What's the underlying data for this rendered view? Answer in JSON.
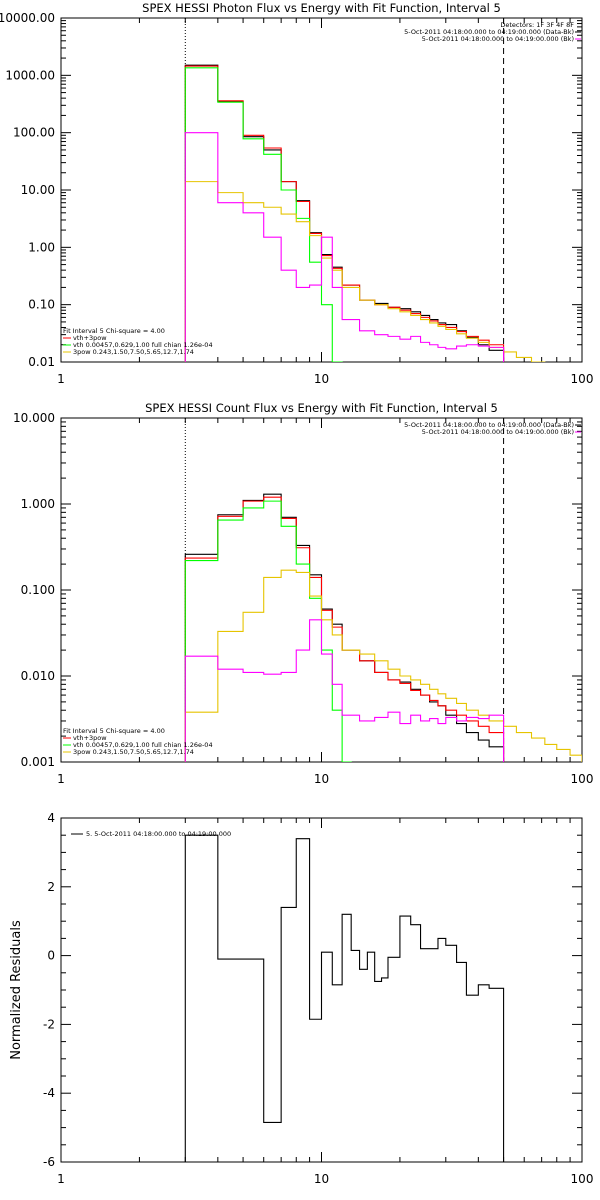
{
  "chart_data": [
    {
      "type": "line",
      "title": "SPEX HESSI Photon Flux vs Energy with Fit Function, Interval 5",
      "x_scale": "log",
      "y_scale": "log",
      "xlim": [
        1,
        100
      ],
      "ylim": [
        0.01,
        10000
      ],
      "x_ticks": [
        1,
        10,
        100
      ],
      "x_tick_labels": [
        "1",
        "10",
        "100"
      ],
      "y_ticks": [
        0.01,
        0.1,
        1,
        10,
        100,
        1000,
        10000
      ],
      "y_tick_labels": [
        "0.01",
        "0.10",
        "1.00",
        "10.00",
        "100.00",
        "1000.00",
        "10000.00"
      ],
      "vlines": [
        {
          "x": 3,
          "style": "dotted"
        },
        {
          "x": 50,
          "style": "dashed"
        }
      ],
      "legend_top_right": [
        "Detectors: 1F 3F 4F 8F",
        "5-Oct-2011 04:18:00.000 to 04:19:00.000 (Data-Bk)",
        "5-Oct-2011 04:18:00.000 to 04:19:00.000 (Bk)"
      ],
      "legend_bottom_left": [
        "Fit Interval 5   Chi-square = 4.00",
        "vth+3pow",
        "vth 0.00457,0.629,1.00  full chian 1.26e-04",
        "3pow 0.243,1.50,7.50,5.65,12.7,1.74"
      ],
      "legend_line_colors": [
        "#ff0000",
        "#00ff00",
        "#e6c400"
      ],
      "series": [
        {
          "name": "5-Oct-2011 04:18:00.000 to 04:19:00.000 (Data-Bk)",
          "color": "#000000",
          "edges": [
            3,
            4,
            5,
            6,
            7,
            8,
            9,
            10,
            11,
            12,
            14,
            16,
            18,
            20,
            22,
            24,
            26,
            28,
            30,
            33,
            36,
            40,
            44,
            50
          ],
          "values": [
            1500,
            350,
            85,
            50,
            14,
            6.5,
            1.8,
            0.75,
            0.45,
            0.22,
            0.12,
            0.105,
            0.09,
            0.085,
            0.075,
            0.065,
            0.055,
            0.048,
            0.045,
            0.035,
            0.027,
            0.02,
            0.016
          ]
        },
        {
          "name": "vth+3pow",
          "color": "#ff0000",
          "edges": [
            3,
            4,
            5,
            6,
            7,
            8,
            9,
            10,
            11,
            12,
            14,
            16,
            18,
            20,
            22,
            24,
            26,
            28,
            30,
            33,
            36,
            40,
            44,
            50
          ],
          "values": [
            1450,
            360,
            90,
            54,
            14,
            6.3,
            1.75,
            0.72,
            0.43,
            0.22,
            0.12,
            0.1,
            0.09,
            0.08,
            0.07,
            0.06,
            0.052,
            0.045,
            0.04,
            0.034,
            0.028,
            0.024,
            0.02
          ]
        },
        {
          "name": "vth 0.00457,0.629,1.00  full chian 1.26e-04",
          "color": "#00ff00",
          "edges": [
            3,
            4,
            5,
            6,
            7,
            8,
            9,
            10,
            11,
            12
          ],
          "values": [
            1350,
            340,
            78,
            42,
            10,
            3.2,
            0.55,
            0.1,
            0.01
          ]
        },
        {
          "name": "3pow 0.243,1.50,7.50,5.65,12.7,1.74",
          "color": "#e6c400",
          "edges": [
            3,
            4,
            5,
            6,
            7,
            8,
            9,
            10,
            11,
            12,
            14,
            16,
            18,
            20,
            22,
            24,
            26,
            28,
            30,
            33,
            36,
            40,
            44,
            50,
            56,
            64,
            72
          ],
          "values": [
            14,
            9,
            6,
            5,
            3.8,
            2.8,
            1.6,
            0.65,
            0.4,
            0.2,
            0.12,
            0.1,
            0.085,
            0.075,
            0.065,
            0.055,
            0.048,
            0.042,
            0.037,
            0.031,
            0.026,
            0.022,
            0.018,
            0.015,
            0.012,
            0.01
          ]
        },
        {
          "name": "5-Oct-2011 04:18:00.000 to 04:19:00.000 (Bk)",
          "color": "#ff00ff",
          "edges": [
            3,
            4,
            5,
            6,
            7,
            8,
            9,
            10,
            11,
            12,
            14,
            16,
            18,
            20,
            22,
            24,
            26,
            28,
            30,
            33,
            36,
            40,
            44,
            50
          ],
          "values": [
            100,
            6,
            4,
            1.5,
            0.4,
            0.2,
            0.22,
            1.5,
            0.2,
            0.055,
            0.035,
            0.03,
            0.028,
            0.025,
            0.028,
            0.022,
            0.02,
            0.018,
            0.017,
            0.019,
            0.02,
            0.019,
            0.018
          ]
        }
      ]
    },
    {
      "type": "line",
      "title": "SPEX HESSI Count Flux vs Energy with Fit Function, Interval 5",
      "x_scale": "log",
      "y_scale": "log",
      "xlim": [
        1,
        100
      ],
      "ylim": [
        0.001,
        10
      ],
      "x_ticks": [
        1,
        10,
        100
      ],
      "x_tick_labels": [
        "1",
        "10",
        "100"
      ],
      "y_ticks": [
        0.001,
        0.01,
        0.1,
        1,
        10
      ],
      "y_tick_labels": [
        "0.001",
        "0.010",
        "0.100",
        "1.000",
        "10.000"
      ],
      "vlines": [
        {
          "x": 3,
          "style": "dotted"
        },
        {
          "x": 50,
          "style": "dashed"
        }
      ],
      "legend_top_right": [
        "5-Oct-2011 04:18:00.000 to 04:19:00.000 (Data-Bk)",
        "5-Oct-2011 04:18:00.000 to 04:19:00.000 (Bk)"
      ],
      "legend_bottom_left": [
        "Fit Interval 5   Chi-square = 4.00",
        "vth+3pow",
        "vth 0.00457,0.629,1.00  full chian 1.26e-04",
        "3pow 0.243,1.50,7.50,5.65,12.7,1.74"
      ],
      "legend_line_colors": [
        "#ff0000",
        "#00ff00",
        "#e6c400"
      ],
      "series": [
        {
          "name": "5-Oct-2011 04:18:00.000 to 04:19:00.000 (Data-Bk)",
          "color": "#000000",
          "edges": [
            3,
            4,
            5,
            6,
            7,
            8,
            9,
            10,
            11,
            12,
            14,
            16,
            18,
            20,
            22,
            24,
            26,
            28,
            30,
            33,
            36,
            40,
            44,
            50
          ],
          "values": [
            0.26,
            0.75,
            1.1,
            1.3,
            0.7,
            0.33,
            0.15,
            0.06,
            0.04,
            0.02,
            0.015,
            0.011,
            0.009,
            0.0085,
            0.007,
            0.006,
            0.005,
            0.0045,
            0.0035,
            0.0028,
            0.0022,
            0.0018,
            0.0015
          ]
        },
        {
          "name": "vth+3pow",
          "color": "#ff0000",
          "edges": [
            3,
            4,
            5,
            6,
            7,
            8,
            9,
            10,
            11,
            12,
            14,
            16,
            18,
            20,
            22,
            24,
            26,
            28,
            30,
            33,
            36,
            40,
            44,
            50
          ],
          "values": [
            0.235,
            0.72,
            1.08,
            1.2,
            0.68,
            0.31,
            0.14,
            0.058,
            0.037,
            0.02,
            0.015,
            0.011,
            0.009,
            0.0082,
            0.0068,
            0.006,
            0.0052,
            0.0045,
            0.004,
            0.0035,
            0.003,
            0.0026,
            0.0022
          ]
        },
        {
          "name": "vth 0.00457,0.629,1.00  full chian 1.26e-04",
          "color": "#00ff00",
          "edges": [
            3,
            4,
            5,
            6,
            7,
            8,
            9,
            10,
            11,
            12,
            13
          ],
          "values": [
            0.22,
            0.65,
            0.9,
            1.08,
            0.55,
            0.2,
            0.08,
            0.02,
            0.004,
            0.001
          ]
        },
        {
          "name": "3pow 0.243,1.50,7.50,5.65,12.7,1.74",
          "color": "#e6c400",
          "edges": [
            3,
            4,
            5,
            6,
            7,
            8,
            9,
            10,
            11,
            12,
            14,
            16,
            18,
            20,
            22,
            24,
            26,
            28,
            30,
            33,
            36,
            40,
            44,
            50,
            56,
            64,
            72,
            80,
            90,
            100
          ],
          "values": [
            0.0038,
            0.033,
            0.055,
            0.14,
            0.17,
            0.16,
            0.085,
            0.045,
            0.03,
            0.02,
            0.018,
            0.015,
            0.012,
            0.01,
            0.009,
            0.008,
            0.007,
            0.0062,
            0.0055,
            0.0048,
            0.004,
            0.0035,
            0.003,
            0.0026,
            0.0022,
            0.0019,
            0.0016,
            0.0014,
            0.0012
          ]
        },
        {
          "name": "5-Oct-2011 04:18:00.000 to 04:19:00.000 (Bk)",
          "color": "#ff00ff",
          "edges": [
            3,
            4,
            5,
            6,
            7,
            8,
            9,
            10,
            11,
            12,
            14,
            16,
            18,
            20,
            22,
            24,
            26,
            28,
            30,
            33,
            36,
            40,
            44,
            50
          ],
          "values": [
            0.017,
            0.012,
            0.011,
            0.0105,
            0.011,
            0.02,
            0.045,
            0.018,
            0.008,
            0.0035,
            0.003,
            0.0033,
            0.0038,
            0.0028,
            0.0035,
            0.003,
            0.0032,
            0.0028,
            0.0033,
            0.003,
            0.0033,
            0.0032,
            0.0035
          ]
        }
      ]
    },
    {
      "type": "line",
      "title": "",
      "x_scale": "log",
      "y_scale": "linear",
      "xlim": [
        1,
        100
      ],
      "ylim": [
        -6,
        4
      ],
      "ylabel": "Normalized Residuals",
      "x_ticks": [
        1,
        10,
        100
      ],
      "x_tick_labels": [
        "1",
        "10",
        "100"
      ],
      "y_ticks": [
        -6,
        -4,
        -2,
        0,
        2,
        4
      ],
      "y_tick_labels": [
        "-6",
        "-4",
        "-2",
        "0",
        "2",
        "4"
      ],
      "legend_top_left": [
        "5.  5-Oct-2011 04:18:00.000 to 04:19:00.000"
      ],
      "series": [
        {
          "name": "5.  5-Oct-2011 04:18:00.000 to 04:19:00.000",
          "color": "#000000",
          "edges": [
            3,
            4,
            5,
            6,
            7,
            8,
            9,
            10,
            11,
            12,
            13,
            14,
            15,
            16,
            17,
            18,
            20,
            22,
            24,
            26,
            28,
            30,
            33,
            36,
            40,
            44,
            50
          ],
          "values": [
            3.5,
            -0.1,
            -0.1,
            -4.85,
            1.4,
            3.4,
            -1.85,
            0.1,
            -0.85,
            1.2,
            0.15,
            -0.4,
            0.1,
            -0.75,
            -0.65,
            -0.05,
            1.15,
            0.9,
            0.2,
            0.2,
            0.5,
            0.3,
            -0.2,
            -1.15,
            -0.85,
            -0.95
          ]
        }
      ]
    }
  ]
}
